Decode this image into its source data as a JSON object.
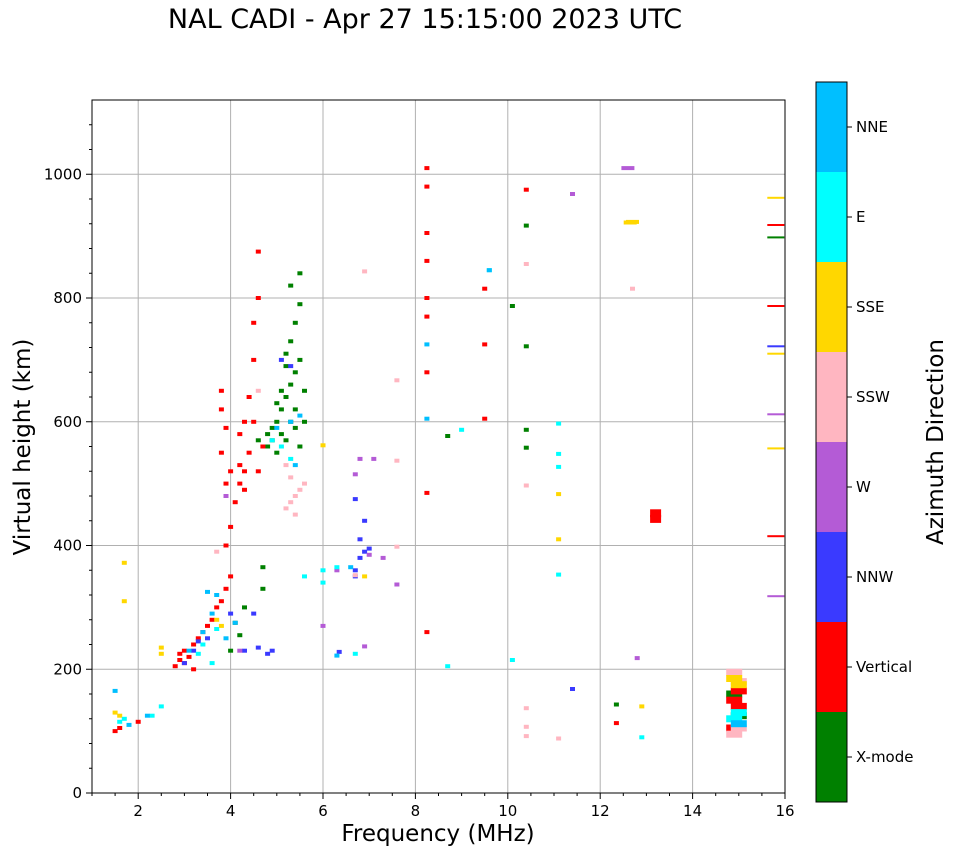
{
  "chart_data": {
    "type": "scatter",
    "title": "NAL CADI - Apr 27 15:15:00 2023 UTC",
    "xlabel": "Frequency (MHz)",
    "ylabel": "Virtual height (km)",
    "xlim": [
      1,
      16
    ],
    "ylim": [
      0,
      1120
    ],
    "xticks": [
      2,
      4,
      6,
      8,
      10,
      12,
      14,
      16
    ],
    "yticks": [
      0,
      200,
      400,
      600,
      800,
      1000
    ],
    "grid": true,
    "colorbar": {
      "label": "Azimuth Direction",
      "categories": [
        "X-mode",
        "Vertical",
        "NNW",
        "W",
        "SSW",
        "SSE",
        "E",
        "NNE"
      ],
      "colors": [
        "#008000",
        "#ff0000",
        "#3a3aff",
        "#b45bd6",
        "#ffb6c1",
        "#ffd700",
        "#00ffff",
        "#00bfff"
      ]
    },
    "series": [
      {
        "name": "X-mode",
        "points": [
          [
            4.7,
            365
          ],
          [
            4.7,
            330
          ],
          [
            4.3,
            300
          ],
          [
            4.1,
            275
          ],
          [
            4.2,
            255
          ],
          [
            4.0,
            230
          ],
          [
            4.8,
            580
          ],
          [
            4.9,
            590
          ],
          [
            5.0,
            600
          ],
          [
            5.1,
            620
          ],
          [
            5.2,
            640
          ],
          [
            5.3,
            660
          ],
          [
            5.4,
            680
          ],
          [
            5.5,
            700
          ],
          [
            5.2,
            710
          ],
          [
            5.3,
            730
          ],
          [
            5.4,
            760
          ],
          [
            5.5,
            790
          ],
          [
            5.3,
            820
          ],
          [
            5.5,
            840
          ],
          [
            4.6,
            570
          ],
          [
            4.8,
            560
          ],
          [
            5.0,
            550
          ],
          [
            5.2,
            570
          ],
          [
            5.4,
            590
          ],
          [
            5.1,
            580
          ],
          [
            5.6,
            600
          ],
          [
            5.6,
            650
          ],
          [
            5.0,
            630
          ],
          [
            5.3,
            600
          ],
          [
            5.4,
            620
          ],
          [
            5.5,
            560
          ],
          [
            4.9,
            570
          ],
          [
            5.2,
            690
          ],
          [
            5.1,
            650
          ],
          [
            8.7,
            577
          ],
          [
            10.4,
            917
          ],
          [
            10.4,
            722
          ],
          [
            10.1,
            787
          ],
          [
            10.4,
            587
          ],
          [
            10.4,
            558
          ],
          [
            12.35,
            143
          ],
          [
            15.8,
            898
          ],
          [
            14.9,
            160
          ],
          [
            15.0,
            125
          ]
        ]
      },
      {
        "name": "Vertical",
        "points": [
          [
            1.5,
            100
          ],
          [
            1.6,
            105
          ],
          [
            2.0,
            115
          ],
          [
            2.8,
            205
          ],
          [
            2.9,
            215
          ],
          [
            3.0,
            230
          ],
          [
            3.1,
            220
          ],
          [
            3.2,
            240
          ],
          [
            3.3,
            250
          ],
          [
            3.4,
            260
          ],
          [
            3.5,
            270
          ],
          [
            3.6,
            280
          ],
          [
            3.7,
            300
          ],
          [
            3.8,
            310
          ],
          [
            3.9,
            330
          ],
          [
            4.0,
            350
          ],
          [
            3.9,
            400
          ],
          [
            4.0,
            430
          ],
          [
            4.1,
            470
          ],
          [
            3.9,
            500
          ],
          [
            4.0,
            520
          ],
          [
            3.8,
            550
          ],
          [
            3.9,
            590
          ],
          [
            3.8,
            620
          ],
          [
            3.8,
            650
          ],
          [
            4.2,
            500
          ],
          [
            4.3,
            520
          ],
          [
            4.4,
            550
          ],
          [
            4.2,
            580
          ],
          [
            4.3,
            600
          ],
          [
            4.4,
            640
          ],
          [
            4.5,
            700
          ],
          [
            4.5,
            760
          ],
          [
            4.6,
            800
          ],
          [
            4.6,
            875
          ],
          [
            4.5,
            600
          ],
          [
            4.7,
            560
          ],
          [
            4.6,
            520
          ],
          [
            4.2,
            530
          ],
          [
            4.3,
            490
          ],
          [
            3.0,
            210
          ],
          [
            3.2,
            200
          ],
          [
            2.9,
            225
          ],
          [
            8.25,
            1010
          ],
          [
            8.25,
            980
          ],
          [
            8.25,
            905
          ],
          [
            8.25,
            860
          ],
          [
            8.25,
            800
          ],
          [
            8.25,
            770
          ],
          [
            8.25,
            680
          ],
          [
            8.25,
            485
          ],
          [
            8.25,
            260
          ],
          [
            9.5,
            815
          ],
          [
            9.5,
            725
          ],
          [
            9.5,
            605
          ],
          [
            10.4,
            975
          ],
          [
            12.35,
            113
          ],
          [
            13.2,
            452
          ],
          [
            13.2,
            443
          ],
          [
            15.8,
            918
          ],
          [
            15.8,
            787
          ],
          [
            15.8,
            415
          ],
          [
            14.9,
            105
          ],
          [
            15.0,
            140
          ],
          [
            14.9,
            150
          ],
          [
            15.0,
            165
          ]
        ]
      },
      {
        "name": "NNW",
        "points": [
          [
            3.0,
            210
          ],
          [
            3.2,
            230
          ],
          [
            3.3,
            245
          ],
          [
            3.5,
            250
          ],
          [
            4.3,
            230
          ],
          [
            4.9,
            230
          ],
          [
            4.8,
            225
          ],
          [
            4.5,
            290
          ],
          [
            4.0,
            290
          ],
          [
            4.6,
            235
          ],
          [
            6.35,
            228
          ],
          [
            6.7,
            350
          ],
          [
            6.7,
            360
          ],
          [
            6.8,
            380
          ],
          [
            6.9,
            390
          ],
          [
            7.0,
            395
          ],
          [
            6.8,
            410
          ],
          [
            6.9,
            440
          ],
          [
            6.7,
            475
          ],
          [
            5.1,
            700
          ],
          [
            5.3,
            690
          ],
          [
            11.4,
            168
          ],
          [
            15.8,
            722
          ]
        ]
      },
      {
        "name": "W",
        "points": [
          [
            3.9,
            480
          ],
          [
            4.2,
            230
          ],
          [
            6.0,
            270
          ],
          [
            6.3,
            360
          ],
          [
            6.7,
            515
          ],
          [
            6.8,
            540
          ],
          [
            7.0,
            385
          ],
          [
            7.1,
            540
          ],
          [
            7.3,
            380
          ],
          [
            7.6,
            337
          ],
          [
            6.9,
            237
          ],
          [
            11.4,
            968
          ],
          [
            12.8,
            218
          ],
          [
            15.8,
            318
          ],
          [
            15.8,
            612
          ],
          [
            12.6,
            1010
          ]
        ]
      },
      {
        "name": "SSW",
        "points": [
          [
            5.2,
            460
          ],
          [
            5.3,
            470
          ],
          [
            5.4,
            480
          ],
          [
            5.5,
            490
          ],
          [
            5.6,
            500
          ],
          [
            5.3,
            510
          ],
          [
            5.2,
            530
          ],
          [
            5.4,
            450
          ],
          [
            3.7,
            390
          ],
          [
            4.6,
            650
          ],
          [
            6.9,
            843
          ],
          [
            7.6,
            667
          ],
          [
            7.6,
            398
          ],
          [
            7.6,
            537
          ],
          [
            6.7,
            352
          ],
          [
            10.4,
            855
          ],
          [
            10.4,
            497
          ],
          [
            10.4,
            137
          ],
          [
            10.4,
            107
          ],
          [
            10.4,
            92
          ],
          [
            11.1,
            88
          ],
          [
            12.7,
            815
          ],
          [
            14.9,
            195
          ],
          [
            15.0,
            180
          ],
          [
            14.9,
            95
          ],
          [
            15.0,
            105
          ]
        ]
      },
      {
        "name": "SSE",
        "points": [
          [
            1.5,
            130
          ],
          [
            1.6,
            125
          ],
          [
            1.7,
            372
          ],
          [
            1.7,
            310
          ],
          [
            2.5,
            225
          ],
          [
            2.5,
            235
          ],
          [
            3.8,
            270
          ],
          [
            3.7,
            280
          ],
          [
            6.0,
            562
          ],
          [
            6.9,
            350
          ],
          [
            11.1,
            483
          ],
          [
            11.1,
            410
          ],
          [
            12.7,
            923
          ],
          [
            12.65,
            922
          ],
          [
            12.9,
            140
          ],
          [
            15.8,
            962
          ],
          [
            15.8,
            710
          ],
          [
            15.8,
            557
          ],
          [
            14.9,
            185
          ],
          [
            15.0,
            175
          ]
        ]
      },
      {
        "name": "E",
        "points": [
          [
            1.6,
            115
          ],
          [
            1.7,
            120
          ],
          [
            2.3,
            125
          ],
          [
            2.5,
            140
          ],
          [
            3.3,
            225
          ],
          [
            3.4,
            240
          ],
          [
            3.6,
            210
          ],
          [
            3.7,
            265
          ],
          [
            4.9,
            570
          ],
          [
            5.1,
            560
          ],
          [
            5.3,
            540
          ],
          [
            5.6,
            350
          ],
          [
            6.0,
            340
          ],
          [
            6.0,
            360
          ],
          [
            6.3,
            365
          ],
          [
            6.7,
            225
          ],
          [
            8.7,
            205
          ],
          [
            9.0,
            587
          ],
          [
            9.6,
            845
          ],
          [
            10.1,
            215
          ],
          [
            11.1,
            597
          ],
          [
            11.1,
            548
          ],
          [
            11.1,
            527
          ],
          [
            11.1,
            353
          ],
          [
            12.9,
            90
          ],
          [
            14.9,
            120
          ],
          [
            15.0,
            130
          ]
        ]
      },
      {
        "name": "NNE",
        "points": [
          [
            1.5,
            165
          ],
          [
            1.8,
            110
          ],
          [
            2.2,
            125
          ],
          [
            3.1,
            230
          ],
          [
            3.4,
            260
          ],
          [
            3.5,
            325
          ],
          [
            3.7,
            320
          ],
          [
            3.6,
            290
          ],
          [
            3.9,
            250
          ],
          [
            4.1,
            275
          ],
          [
            5.0,
            590
          ],
          [
            5.3,
            600
          ],
          [
            5.5,
            610
          ],
          [
            5.4,
            530
          ],
          [
            6.3,
            222
          ],
          [
            6.6,
            365
          ],
          [
            8.25,
            725
          ],
          [
            8.25,
            605
          ],
          [
            9.6,
            845
          ],
          [
            15.0,
            112
          ]
        ]
      }
    ]
  }
}
